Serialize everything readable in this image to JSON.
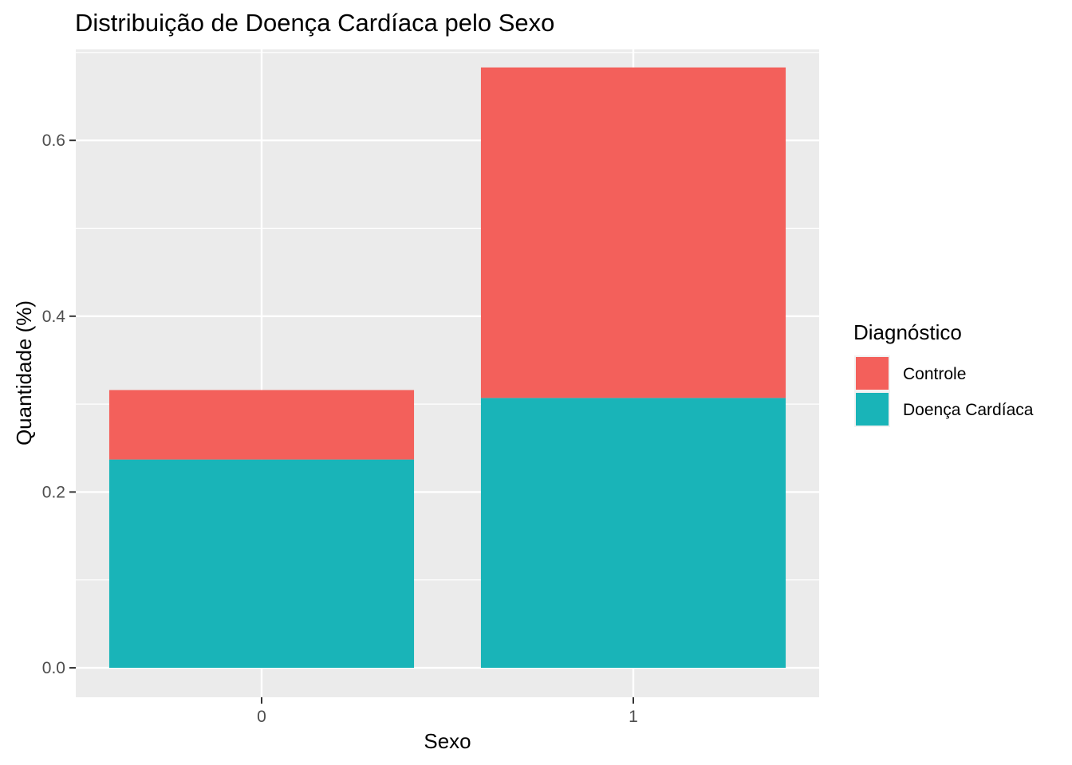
{
  "chart_data": {
    "type": "bar",
    "stacked": true,
    "title": "Distribuição de Doença Cardíaca pelo Sexo",
    "xlabel": "Sexo",
    "ylabel": "Quantidade (%)",
    "categories": [
      "0",
      "1"
    ],
    "series": [
      {
        "name": "Doença Cardíaca",
        "color": "#19B4B8",
        "values": [
          0.237,
          0.307
        ]
      },
      {
        "name": "Controle",
        "color": "#F3605B",
        "values": [
          0.079,
          0.376
        ]
      }
    ],
    "ylim": [
      -0.0335,
      0.7035
    ],
    "yticks": [
      0.0,
      0.2,
      0.4,
      0.6
    ],
    "ytick_labels": [
      "0.0",
      "0.2",
      "0.4",
      "0.6"
    ],
    "grid": true,
    "legend": {
      "title": "Diagnóstico",
      "position": "right",
      "entries": [
        {
          "name": "Controle",
          "color": "#F3605B"
        },
        {
          "name": "Doença Cardíaca",
          "color": "#19B4B8"
        }
      ]
    }
  }
}
